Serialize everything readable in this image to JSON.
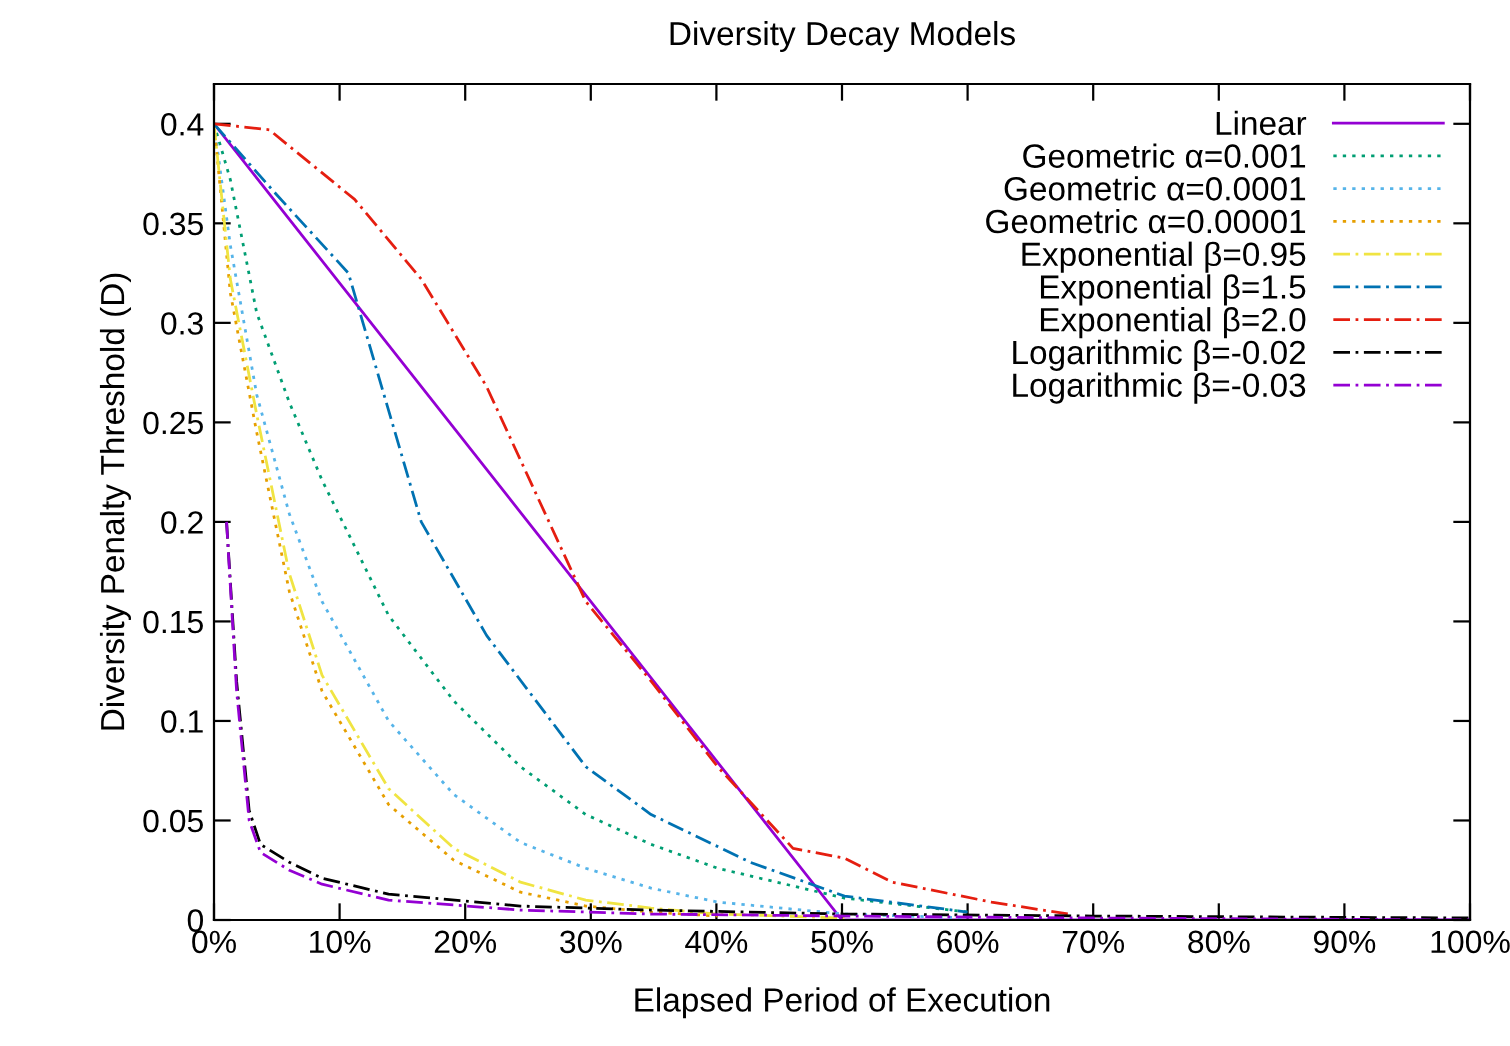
{
  "chart_data": {
    "type": "line",
    "title": "Diversity Decay Models",
    "xlabel": "Elapsed Period of Execution",
    "ylabel": "Diversity Penalty Threshold (D)",
    "xlim": [
      0,
      100
    ],
    "ylim": [
      0,
      0.42
    ],
    "xticks": [
      {
        "value": 0,
        "label": "0%"
      },
      {
        "value": 10,
        "label": "10%"
      },
      {
        "value": 20,
        "label": "20%"
      },
      {
        "value": 30,
        "label": "30%"
      },
      {
        "value": 40,
        "label": "40%"
      },
      {
        "value": 50,
        "label": "50%"
      },
      {
        "value": 60,
        "label": "60%"
      },
      {
        "value": 70,
        "label": "70%"
      },
      {
        "value": 80,
        "label": "80%"
      },
      {
        "value": 90,
        "label": "90%"
      },
      {
        "value": 100,
        "label": "100%"
      }
    ],
    "yticks": [
      0,
      0.05,
      0.1,
      0.15,
      0.2,
      0.25,
      0.3,
      0.35,
      0.4
    ],
    "grid": false,
    "legend": "top right",
    "series": [
      {
        "name": "Linear",
        "color": "#9400d3",
        "line_style": "solid",
        "x": [
          0,
          50,
          100
        ],
        "values": [
          0.4,
          0,
          0
        ]
      },
      {
        "name": "Geometric α=0.001",
        "color": "#009e73",
        "line_style": "dotted",
        "x": [
          0,
          1.3,
          3.4,
          6,
          8.6,
          13.9,
          19.1,
          24.4,
          29.6,
          34.8,
          40.1,
          50.2,
          60
        ],
        "values": [
          0.4,
          0.372,
          0.305,
          0.26,
          0.221,
          0.153,
          0.11,
          0.077,
          0.053,
          0.038,
          0.026,
          0.011,
          0.004
        ]
      },
      {
        "name": "Geometric α=0.0001",
        "color": "#56b4e9",
        "line_style": "dotted",
        "x": [
          0,
          1.3,
          3.4,
          6,
          8.6,
          13.9,
          19.1,
          24.4,
          29.6,
          34.8,
          40.1,
          50.2,
          60
        ],
        "values": [
          0.4,
          0.339,
          0.264,
          0.204,
          0.16,
          0.1,
          0.063,
          0.039,
          0.026,
          0.016,
          0.009,
          0.003,
          0.001
        ]
      },
      {
        "name": "Geometric α=0.00001",
        "color": "#e69f00",
        "line_style": "dotted",
        "x": [
          0,
          1.3,
          3.4,
          6,
          8.6,
          13.9,
          19.1,
          24.4,
          29.6,
          34.8,
          40.1
        ],
        "values": [
          0.4,
          0.315,
          0.245,
          0.165,
          0.115,
          0.058,
          0.03,
          0.014,
          0.007,
          0.004,
          0.002
        ]
      },
      {
        "name": "Exponential β=0.95",
        "color": "#f0e442",
        "line_style": "dashed",
        "x": [
          0,
          1.3,
          3.4,
          6,
          8.6,
          13.9,
          19.1,
          24.4,
          29.6,
          34.8,
          40.1,
          50.2
        ],
        "values": [
          0.4,
          0.322,
          0.254,
          0.174,
          0.123,
          0.066,
          0.036,
          0.019,
          0.01,
          0.006,
          0.003,
          0.001
        ]
      },
      {
        "name": "Exponential β=1.5",
        "color": "#0072b2",
        "line_style": "dashed",
        "x": [
          0,
          4.9,
          10.7,
          16.5,
          21.7,
          29.6,
          34.8,
          42.7,
          50.2,
          60
        ],
        "values": [
          0.4,
          0.365,
          0.325,
          0.2,
          0.143,
          0.077,
          0.053,
          0.029,
          0.012,
          0.004
        ]
      },
      {
        "name": "Exponential β=2.0",
        "color": "#e51e10",
        "line_style": "dashed",
        "x": [
          0,
          4.4,
          11.2,
          16.5,
          21.7,
          29.6,
          34.8,
          40.1,
          46.1,
          50.2,
          54,
          61.9,
          68
        ],
        "values": [
          0.4,
          0.397,
          0.362,
          0.322,
          0.268,
          0.16,
          0.12,
          0.077,
          0.036,
          0.031,
          0.019,
          0.009,
          0.003
        ]
      },
      {
        "name": "Logarithmic β=-0.02",
        "color": "#000000",
        "line_style": "dashed",
        "x": [
          1.0,
          1.8,
          2.8,
          3.7,
          6,
          8.6,
          13.9,
          24.4,
          34.8,
          50.2,
          70,
          100
        ],
        "values": [
          0.2,
          0.12,
          0.055,
          0.038,
          0.029,
          0.021,
          0.013,
          0.007,
          0.005,
          0.003,
          0.002,
          0.001
        ]
      },
      {
        "name": "Logarithmic β=-0.03",
        "color": "#9400d3",
        "line_style": "dashed",
        "x": [
          1.0,
          1.8,
          2.8,
          3.7,
          6,
          8.6,
          13.9,
          24.4,
          34.8,
          50.2,
          70,
          100
        ],
        "values": [
          0.2,
          0.115,
          0.05,
          0.034,
          0.025,
          0.018,
          0.01,
          0.005,
          0.003,
          0.002,
          0.001,
          0
        ]
      }
    ]
  }
}
